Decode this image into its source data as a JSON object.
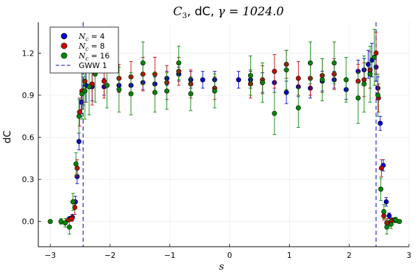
{
  "chart_data": {
    "type": "scatter",
    "title": "C_3, dC, γ = 1024.0",
    "title_parts": {
      "math": "C",
      "sub": "3",
      "mid": ", dC, ",
      "gamma": "γ = 1024.0"
    },
    "xlabel": "s",
    "ylabel": "dC",
    "xlim": [
      -3.2,
      3.0
    ],
    "ylim": [
      -0.18,
      1.42
    ],
    "xticks": [
      -3,
      -2,
      -1,
      0,
      1,
      2,
      3
    ],
    "xtick_labels": [
      "−3",
      "−2",
      "−1",
      "0",
      "1",
      "2",
      "3"
    ],
    "yticks": [
      0.0,
      0.3,
      0.6,
      0.9,
      1.2
    ],
    "ytick_labels": [
      "0.0",
      "0.3",
      "0.6",
      "0.9",
      "1.2"
    ],
    "grid": true,
    "legend_position": "top-left",
    "vlines": {
      "name": "GWW 1",
      "color": "#3333cc",
      "x": [
        -2.45,
        2.45
      ]
    },
    "series": [
      {
        "name": "N_c = 4",
        "legend_label": {
          "math": "N",
          "sub": "c",
          "rest": " = 4"
        },
        "color": "#0000cc",
        "points": [
          [
            -2.68,
            0.02,
            0.01
          ],
          [
            -2.63,
            0.03,
            0.02
          ],
          [
            -2.58,
            0.14,
            0.04
          ],
          [
            -2.55,
            0.32,
            0.05
          ],
          [
            -2.52,
            0.57,
            0.06
          ],
          [
            -2.48,
            0.85,
            0.08
          ],
          [
            -2.45,
            0.93,
            0.1
          ],
          [
            -2.4,
            0.97,
            0.12
          ],
          [
            -2.3,
            0.96,
            0.1
          ],
          [
            -2.1,
            0.96,
            0.06
          ],
          [
            -1.85,
            0.97,
            0.05
          ],
          [
            -1.65,
            0.97,
            0.06
          ],
          [
            -1.45,
            0.99,
            0.05
          ],
          [
            -1.25,
            0.98,
            0.05
          ],
          [
            -1.05,
            1.02,
            0.05
          ],
          [
            -0.85,
            1.05,
            0.05
          ],
          [
            -0.65,
            1.01,
            0.06
          ],
          [
            -0.45,
            1.01,
            0.06
          ],
          [
            -0.25,
            1.01,
            0.06
          ],
          [
            0.15,
            1.01,
            0.06
          ],
          [
            0.35,
            1.01,
            0.06
          ],
          [
            0.55,
            0.99,
            0.07
          ],
          [
            0.75,
            0.99,
            0.07
          ],
          [
            0.95,
            0.92,
            0.08
          ],
          [
            1.15,
            0.96,
            0.07
          ],
          [
            1.35,
            0.95,
            0.07
          ],
          [
            1.55,
            1.0,
            0.07
          ],
          [
            1.75,
            1.01,
            0.06
          ],
          [
            1.95,
            0.94,
            0.07
          ],
          [
            2.15,
            1.07,
            0.08
          ],
          [
            2.25,
            1.08,
            0.08
          ],
          [
            2.32,
            1.12,
            0.1
          ],
          [
            2.38,
            1.15,
            0.12
          ],
          [
            2.45,
            1.1,
            0.1
          ],
          [
            2.48,
            0.95,
            0.08
          ],
          [
            2.52,
            0.7,
            0.05
          ],
          [
            2.57,
            0.4,
            0.04
          ],
          [
            2.62,
            0.14,
            0.03
          ],
          [
            2.67,
            0.04,
            0.02
          ],
          [
            2.72,
            0.01,
            0.01
          ]
        ]
      },
      {
        "name": "N_c = 8",
        "legend_label": {
          "math": "N",
          "sub": "c",
          "rest": " = 8"
        },
        "color": "#cc0000",
        "points": [
          [
            -2.7,
            0.01,
            0.01
          ],
          [
            -2.64,
            0.02,
            0.02
          ],
          [
            -2.59,
            0.1,
            0.05
          ],
          [
            -2.55,
            0.38,
            0.06
          ],
          [
            -2.51,
            0.78,
            0.1
          ],
          [
            -2.47,
            0.93,
            0.13
          ],
          [
            -2.42,
            1.0,
            0.15
          ],
          [
            -2.3,
            0.98,
            0.15
          ],
          [
            -2.1,
            1.0,
            0.12
          ],
          [
            -1.85,
            1.02,
            0.1
          ],
          [
            -1.65,
            1.03,
            0.11
          ],
          [
            -1.45,
            1.05,
            0.12
          ],
          [
            -1.25,
            1.05,
            0.12
          ],
          [
            -1.05,
            0.99,
            0.12
          ],
          [
            -0.85,
            1.07,
            0.1
          ],
          [
            -0.65,
            0.98,
            0.1
          ],
          [
            -0.25,
            0.95,
            0.08
          ],
          [
            0.35,
            0.98,
            0.1
          ],
          [
            0.55,
            1.01,
            0.1
          ],
          [
            0.75,
            1.07,
            0.12
          ],
          [
            0.95,
            1.12,
            0.1
          ],
          [
            1.15,
            1.02,
            0.12
          ],
          [
            1.35,
            1.02,
            0.12
          ],
          [
            1.55,
            1.04,
            0.12
          ],
          [
            1.75,
            1.05,
            0.11
          ],
          [
            2.15,
            1.0,
            0.12
          ],
          [
            2.25,
            1.01,
            0.12
          ],
          [
            2.35,
            1.08,
            0.13
          ],
          [
            2.45,
            1.2,
            0.15
          ],
          [
            2.49,
            0.88,
            0.1
          ],
          [
            2.54,
            0.38,
            0.06
          ],
          [
            2.58,
            0.04,
            0.03
          ],
          [
            2.63,
            -0.01,
            0.03
          ],
          [
            2.7,
            0.0,
            0.02
          ],
          [
            2.76,
            0.01,
            0.01
          ]
        ]
      },
      {
        "name": "N_c = 16",
        "legend_label": {
          "math": "N",
          "sub": "c",
          "rest": " = 16"
        },
        "color": "#008800",
        "points": [
          [
            -3.0,
            0.0,
            0.01
          ],
          [
            -2.82,
            0.0,
            0.02
          ],
          [
            -2.75,
            -0.01,
            0.03
          ],
          [
            -2.68,
            -0.04,
            0.05
          ],
          [
            -2.62,
            0.14,
            0.06
          ],
          [
            -2.57,
            0.41,
            0.08
          ],
          [
            -2.52,
            0.75,
            0.12
          ],
          [
            -2.47,
            0.91,
            0.18
          ],
          [
            -2.42,
            0.93,
            0.2
          ],
          [
            -2.35,
            0.96,
            0.2
          ],
          [
            -2.25,
            1.05,
            0.2
          ],
          [
            -2.05,
            0.97,
            0.16
          ],
          [
            -1.85,
            0.94,
            0.16
          ],
          [
            -1.65,
            0.91,
            0.15
          ],
          [
            -1.45,
            1.13,
            0.15
          ],
          [
            -1.25,
            0.92,
            0.14
          ],
          [
            -1.05,
            0.93,
            0.13
          ],
          [
            -0.85,
            1.13,
            0.12
          ],
          [
            -0.65,
            0.91,
            0.12
          ],
          [
            -0.25,
            0.93,
            0.12
          ],
          [
            0.35,
            1.04,
            0.14
          ],
          [
            0.55,
            0.99,
            0.14
          ],
          [
            0.75,
            0.77,
            0.15
          ],
          [
            0.95,
            1.08,
            0.14
          ],
          [
            1.15,
            0.81,
            0.14
          ],
          [
            1.35,
            1.13,
            0.15
          ],
          [
            1.55,
            1.01,
            0.15
          ],
          [
            1.75,
            1.13,
            0.15
          ],
          [
            1.95,
            1.01,
            0.16
          ],
          [
            2.15,
            0.88,
            0.18
          ],
          [
            2.25,
            0.98,
            0.2
          ],
          [
            2.35,
            1.05,
            0.2
          ],
          [
            2.42,
            1.17,
            0.2
          ],
          [
            2.48,
            0.9,
            0.15
          ],
          [
            2.53,
            0.23,
            0.08
          ],
          [
            2.58,
            0.07,
            0.05
          ],
          [
            2.63,
            -0.04,
            0.05
          ],
          [
            2.7,
            -0.02,
            0.03
          ],
          [
            2.78,
            0.01,
            0.02
          ],
          [
            2.84,
            0.0,
            0.01
          ]
        ]
      }
    ]
  }
}
